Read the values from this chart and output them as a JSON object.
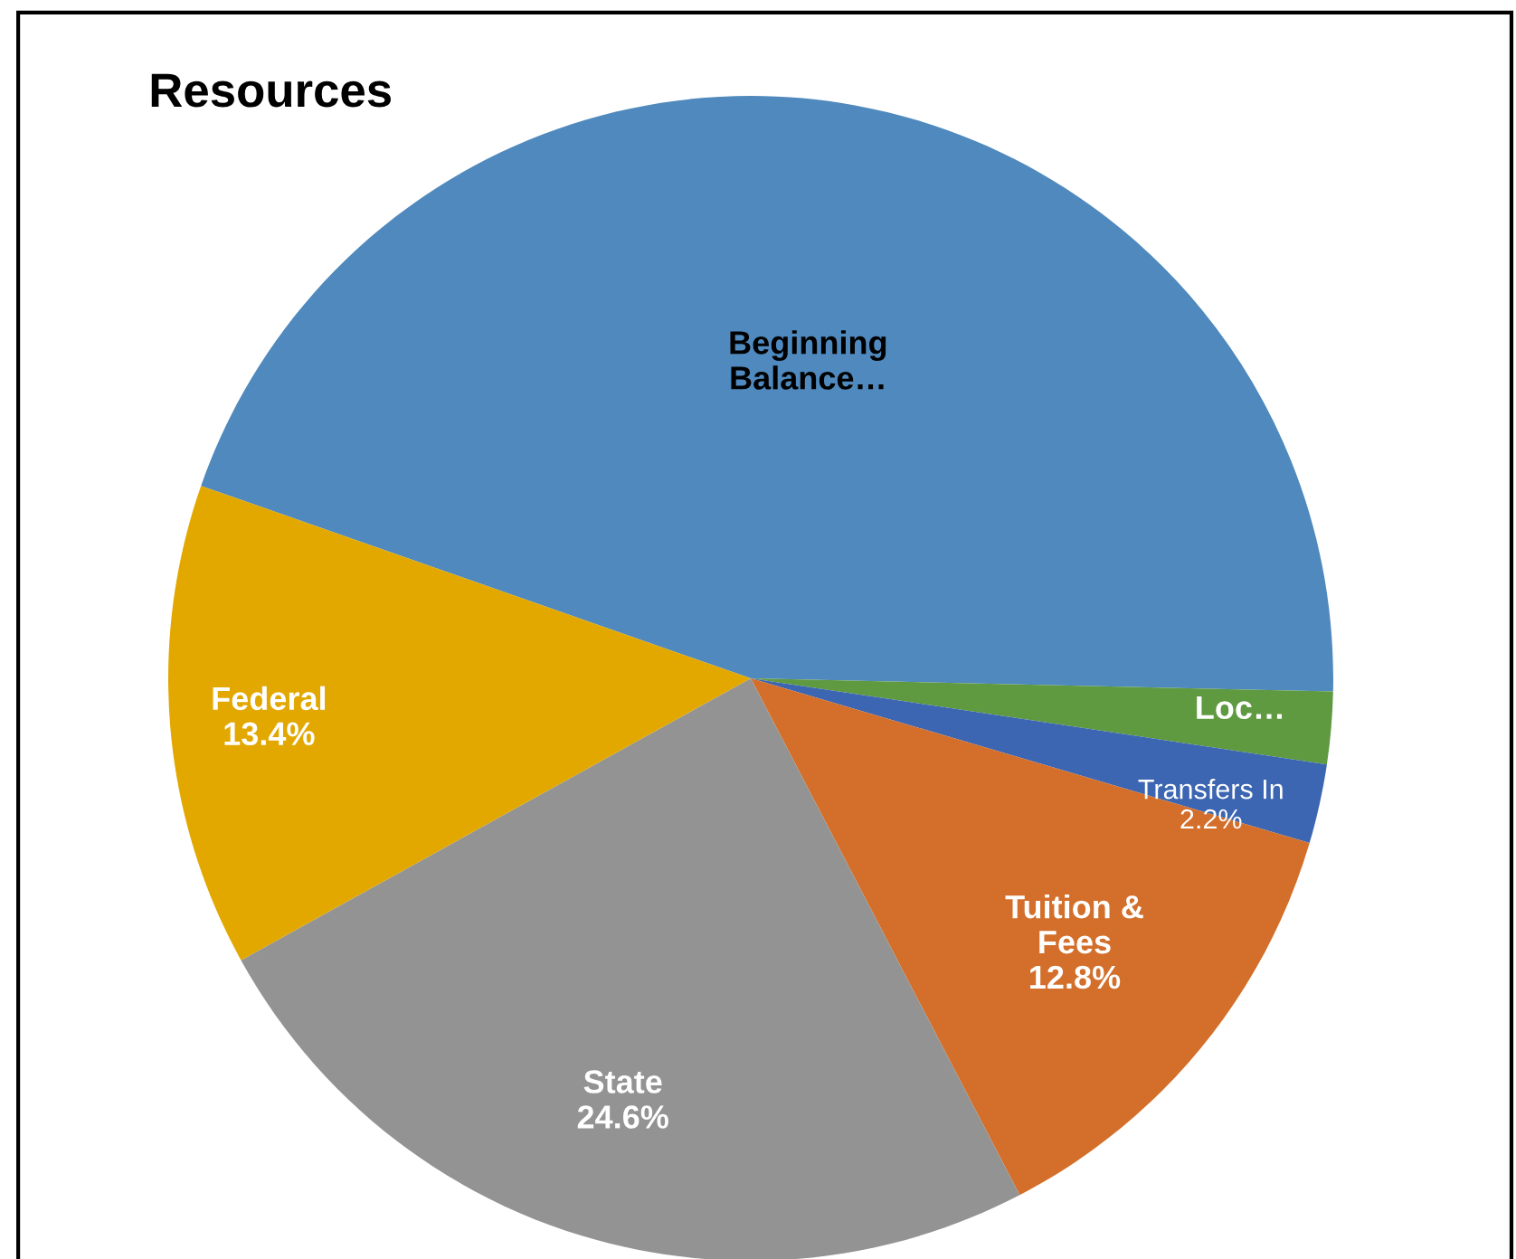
{
  "chart_data": {
    "type": "pie",
    "title": "Resources",
    "categories": [
      "Beginning Balance…",
      "Loc…",
      "Transfers In",
      "Tuition & Fees",
      "State",
      "Federal"
    ],
    "values": [
      45.0,
      2.0,
      2.2,
      12.8,
      24.6,
      13.4
    ],
    "value_labels": [
      null,
      null,
      "2.2%",
      "12.8%",
      "24.6%",
      "13.4%"
    ],
    "colors": [
      "#4f89bd",
      "#5f9a41",
      "#3c65b2",
      "#d36f2a",
      "#939393",
      "#e2a800"
    ],
    "legend": false
  }
}
